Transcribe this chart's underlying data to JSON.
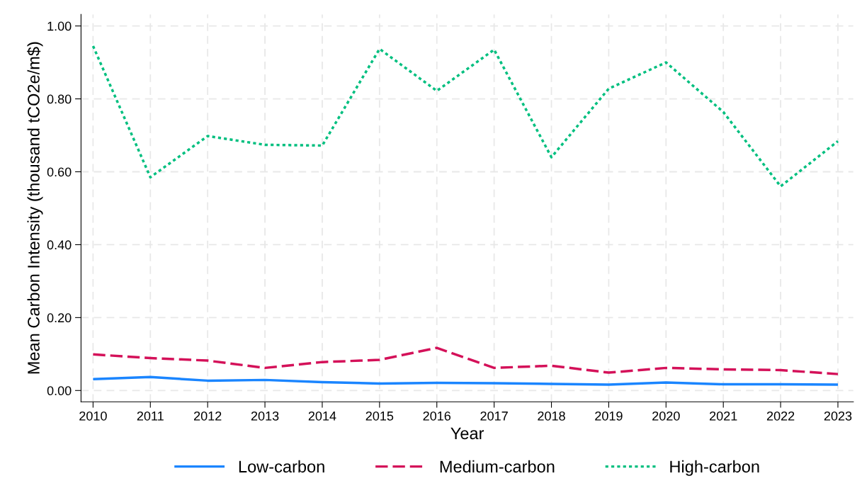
{
  "chart_data": {
    "type": "line",
    "xlabel": "Year",
    "ylabel": "Mean Carbon Intensity (thousand tCO2e/m$)",
    "x": [
      2010,
      2011,
      2012,
      2013,
      2014,
      2015,
      2016,
      2017,
      2018,
      2019,
      2020,
      2021,
      2022,
      2023
    ],
    "series": [
      {
        "name": "Low-carbon",
        "color": "#1a85ff",
        "line_style": "solid",
        "values": [
          0.031,
          0.037,
          0.027,
          0.029,
          0.023,
          0.019,
          0.021,
          0.02,
          0.018,
          0.016,
          0.022,
          0.017,
          0.017,
          0.016
        ]
      },
      {
        "name": "Medium-carbon",
        "color": "#d41159",
        "line_style": "dashed",
        "values": [
          0.099,
          0.089,
          0.082,
          0.062,
          0.078,
          0.084,
          0.117,
          0.062,
          0.068,
          0.049,
          0.062,
          0.058,
          0.056,
          0.045
        ]
      },
      {
        "name": "High-carbon",
        "color": "#00bf7f",
        "line_style": "dotted",
        "values": [
          0.945,
          0.585,
          0.698,
          0.674,
          0.672,
          0.937,
          0.822,
          0.935,
          0.64,
          0.828,
          0.9,
          0.764,
          0.56,
          0.684
        ]
      }
    ],
    "xlim": [
      2009.79,
      2023.27
    ],
    "xticks": [
      2010,
      2011,
      2012,
      2013,
      2014,
      2015,
      2016,
      2017,
      2018,
      2019,
      2020,
      2021,
      2022,
      2023
    ],
    "ylim": [
      -0.031,
      1.032
    ],
    "yticks": [
      {
        "value": 0,
        "label": "0.00"
      },
      {
        "value": 0.2,
        "label": "0.20"
      },
      {
        "value": 0.4,
        "label": "0.40"
      },
      {
        "value": 0.6,
        "label": "0.60"
      },
      {
        "value": 0.8,
        "label": "0.80"
      },
      {
        "value": 1,
        "label": "1.00"
      }
    ],
    "grid": true,
    "legend": "bottom",
    "marker": "none"
  }
}
